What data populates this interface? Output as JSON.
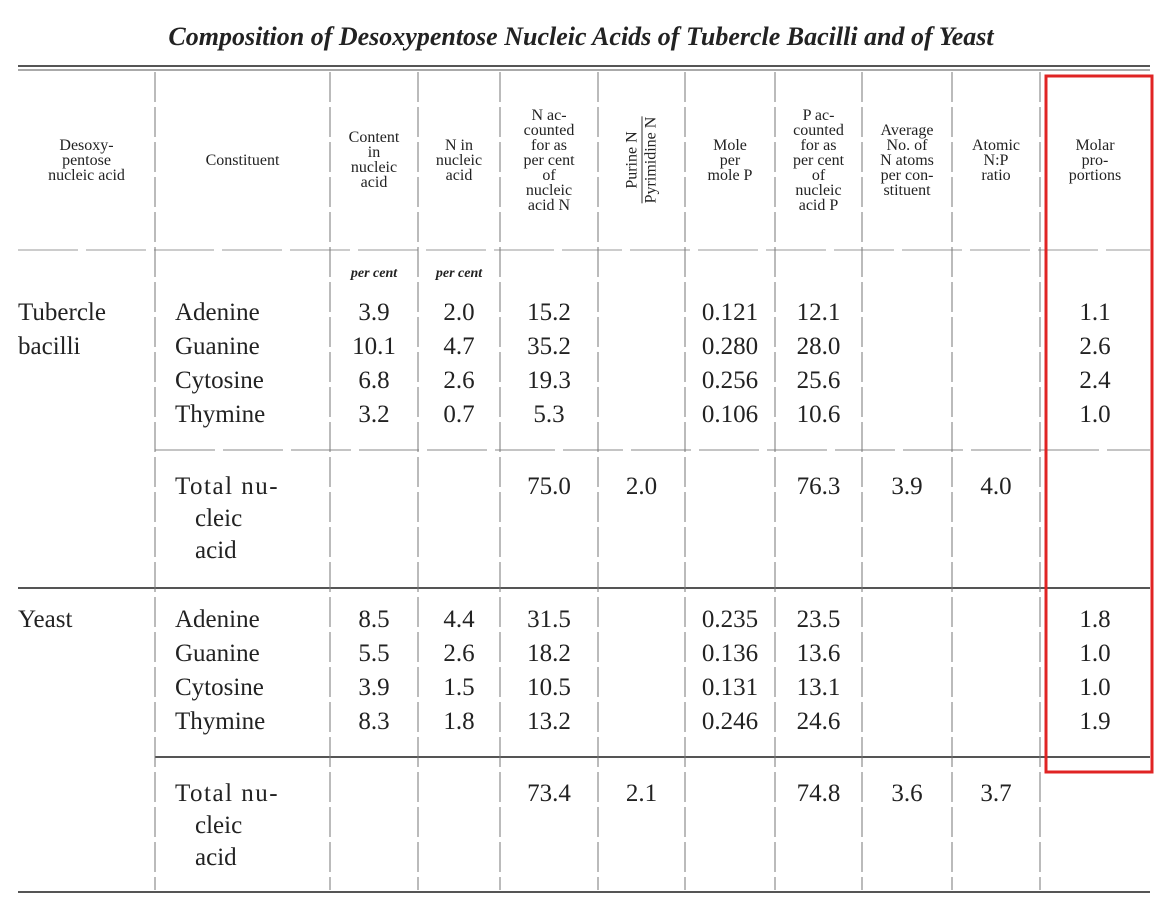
{
  "title": "Composition of Desoxypentose Nucleic Acids of Tubercle Bacilli and of Yeast",
  "table": {
    "header": [
      [
        "Desoxy-",
        "pentose",
        "nucleic acid"
      ],
      [
        "Constituent"
      ],
      [
        "Content",
        "in",
        "nucleic",
        "acid"
      ],
      [
        "N in",
        "nucleic",
        "acid"
      ],
      [
        "N ac-",
        "counted",
        "for as",
        "per cent",
        "of",
        "nucleic",
        "acid N"
      ],
      [
        "Purine N",
        "Pyrimidine N"
      ],
      [
        "Mole",
        "per",
        "mole P"
      ],
      [
        "P ac-",
        "counted",
        "for as",
        "per cent",
        "of",
        "nucleic",
        "acid P"
      ],
      [
        "Average",
        "No. of",
        "N atoms",
        "per con-",
        "stituent"
      ],
      [
        "Atomic",
        "N:P",
        "ratio"
      ],
      [
        "Molar",
        "pro-",
        "portions"
      ]
    ],
    "units": [
      null,
      null,
      "per cent",
      "per cent",
      null,
      null,
      null,
      null,
      null,
      null,
      null
    ],
    "groups": [
      {
        "name": [
          "Tubercle",
          "bacilli"
        ],
        "rows": [
          {
            "constituent": [
              "Adenine"
            ],
            "cells": [
              "3.9",
              "2.0",
              "15.2",
              null,
              "0.121",
              "12.1",
              null,
              null,
              "1.1"
            ]
          },
          {
            "constituent": [
              "Guanine"
            ],
            "cells": [
              "10.1",
              "4.7",
              "35.2",
              null,
              "0.280",
              "28.0",
              null,
              null,
              "2.6"
            ]
          },
          {
            "constituent": [
              "Cytosine"
            ],
            "cells": [
              "6.8",
              "2.6",
              "19.3",
              null,
              "0.256",
              "25.6",
              null,
              null,
              "2.4"
            ]
          },
          {
            "constituent": [
              "Thymine"
            ],
            "cells": [
              "3.2",
              "0.7",
              "5.3",
              null,
              "0.106",
              "10.6",
              null,
              null,
              "1.0"
            ]
          },
          {
            "constituent": [
              "Total nu-",
              "cleic",
              "acid"
            ],
            "cells": [
              null,
              null,
              "75.0",
              "2.0",
              null,
              "76.3",
              "3.9",
              "4.0",
              null
            ]
          }
        ]
      },
      {
        "name": [
          "Yeast"
        ],
        "rows": [
          {
            "constituent": [
              "Adenine"
            ],
            "cells": [
              "8.5",
              "4.4",
              "31.5",
              null,
              "0.235",
              "23.5",
              null,
              null,
              "1.8"
            ]
          },
          {
            "constituent": [
              "Guanine"
            ],
            "cells": [
              "5.5",
              "2.6",
              "18.2",
              null,
              "0.136",
              "13.6",
              null,
              null,
              "1.0"
            ]
          },
          {
            "constituent": [
              "Cytosine"
            ],
            "cells": [
              "3.9",
              "1.5",
              "10.5",
              null,
              "0.131",
              "13.1",
              null,
              null,
              "1.0"
            ]
          },
          {
            "constituent": [
              "Thymine"
            ],
            "cells": [
              "8.3",
              "1.8",
              "13.2",
              null,
              "0.246",
              "24.6",
              null,
              null,
              "1.9"
            ]
          },
          {
            "constituent": [
              "Total nu-",
              "cleic",
              "acid"
            ],
            "cells": [
              null,
              null,
              "73.4",
              "2.1",
              null,
              "74.8",
              "3.6",
              "3.7",
              null
            ]
          }
        ]
      }
    ]
  }
}
